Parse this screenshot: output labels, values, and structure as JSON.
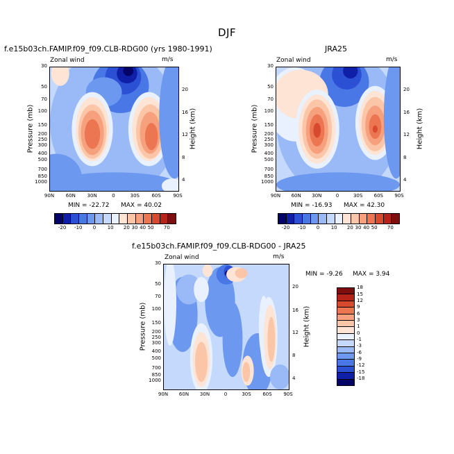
{
  "title": "DJF",
  "palette_main": [
    "#040366",
    "#0f1fa8",
    "#2b50d4",
    "#4a77e6",
    "#6d98f0",
    "#99baf7",
    "#c4d9fb",
    "#e8f1fd",
    "#fde4d4",
    "#fbc5a7",
    "#f6a07d",
    "#ec7552",
    "#d84a30",
    "#b62318",
    "#7f0f0f"
  ],
  "palette_diff": [
    "#040366",
    "#0f1fa8",
    "#2b50d4",
    "#4a77e6",
    "#6d98f0",
    "#99baf7",
    "#c4d9fb",
    "#e8f1fd",
    "#fde4d4",
    "#fbc5a7",
    "#f6a07d",
    "#ec7552",
    "#d84a30",
    "#b62318",
    "#7f0f0f"
  ],
  "colorbar_main_labels": [
    "-20",
    "-10",
    "0",
    "10",
    "20",
    "30",
    "40",
    "50",
    "70"
  ],
  "colorbar_diff_labels": [
    "18",
    "15",
    "12",
    "9",
    "6",
    "3",
    "1",
    "0",
    "-1",
    "-3",
    "-6",
    "-9",
    "-12",
    "-15",
    "-18"
  ],
  "chart_data": [
    {
      "type": "heatmap",
      "title": "f.e15b03ch.FAMIP.f09_f09.CLB-RDG00 (yrs 1980-1991)",
      "variable": "Zonal wind",
      "units": "m/s",
      "ylabel": "Pressure (mb)",
      "ylabel_right": "Height (km)",
      "x_ticks": [
        "90N",
        "60N",
        "30N",
        "0",
        "30S",
        "60S",
        "90S"
      ],
      "y_ticks": [
        "30",
        "50",
        "70",
        "100",
        "150",
        "200",
        "250",
        "300",
        "400",
        "500",
        "700",
        "850",
        "1000"
      ],
      "y_right_ticks": [
        "20",
        "16",
        "12",
        "8",
        "4"
      ],
      "min_label": "MIN = -22.72",
      "max_label": "MAX =  40.02",
      "min": -22.72,
      "max": 40.02
    },
    {
      "type": "heatmap",
      "title": "JRA25",
      "variable": "Zonal wind",
      "units": "m/s",
      "ylabel": "Pressure (mb)",
      "ylabel_right": "Height (km)",
      "x_ticks": [
        "90N",
        "60N",
        "30N",
        "0",
        "30S",
        "60S",
        "90S"
      ],
      "y_ticks": [
        "30",
        "50",
        "70",
        "100",
        "150",
        "200",
        "250",
        "300",
        "400",
        "500",
        "700",
        "850",
        "1000"
      ],
      "y_right_ticks": [
        "20",
        "16",
        "12",
        "8",
        "4"
      ],
      "min_label": "MIN = -16.93",
      "max_label": "MAX =  42.30",
      "min": -16.93,
      "max": 42.3
    },
    {
      "type": "heatmap",
      "title": "f.e15b03ch.FAMIP.f09_f09.CLB-RDG00 - JRA25",
      "variable": "Zonal wind",
      "units": "m/s",
      "ylabel": "Pressure (mb)",
      "ylabel_right": "Height (km)",
      "x_ticks": [
        "90N",
        "60N",
        "30N",
        "0",
        "30S",
        "60S",
        "90S"
      ],
      "y_ticks": [
        "30",
        "50",
        "70",
        "100",
        "150",
        "200",
        "250",
        "300",
        "400",
        "500",
        "700",
        "850",
        "1000"
      ],
      "y_right_ticks": [
        "20",
        "16",
        "12",
        "8",
        "4"
      ],
      "min_label": "MIN = -9.26",
      "max_label": "MAX =   3.94",
      "min": -9.26,
      "max": 3.94
    }
  ]
}
